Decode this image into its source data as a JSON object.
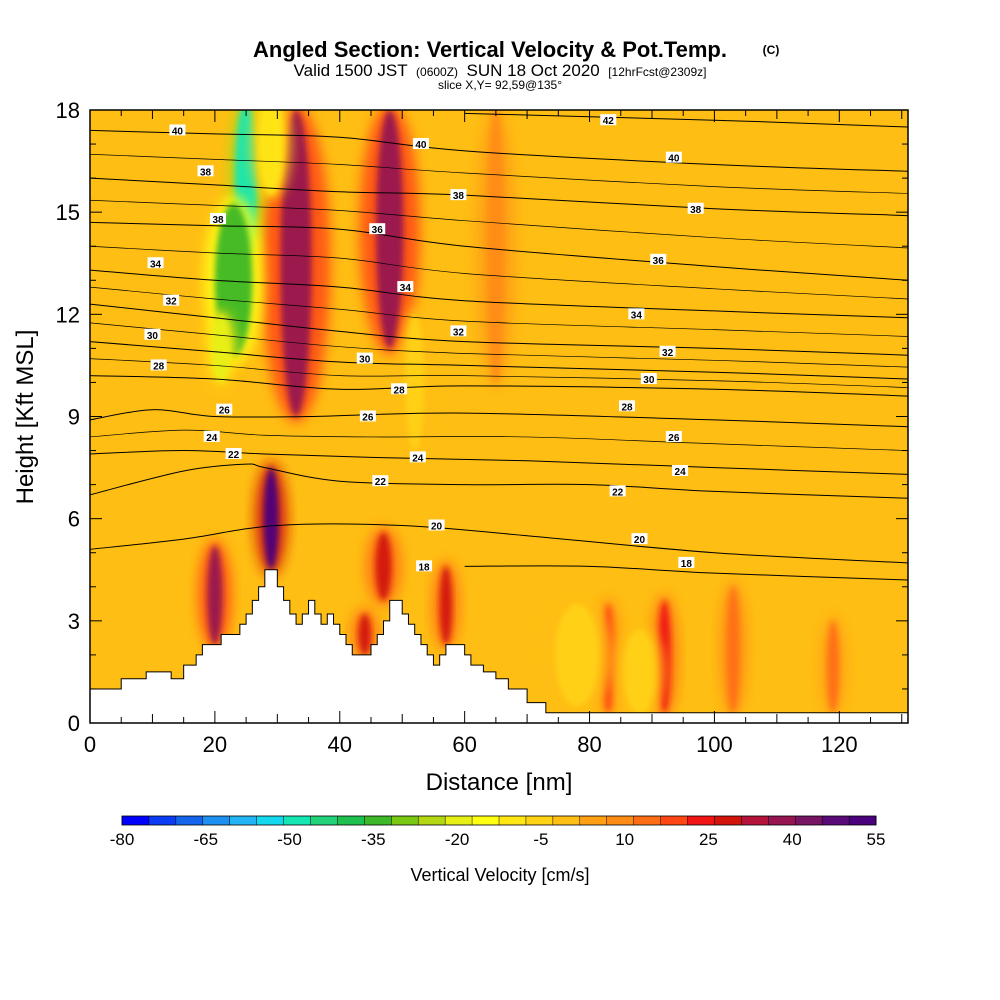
{
  "chart_data": {
    "type": "heatmap",
    "title": {
      "main": "Angled Section: Vertical Velocity & Pot.Temp.",
      "tag": "(C)"
    },
    "subtitle": {
      "valid": "Valid 1500 JST",
      "utc": "(0600Z)",
      "date": "SUN 18 Oct 2020",
      "forecast": "[12hrFcst@2309z]",
      "slice": "slice X,Y= 92,59@135°"
    },
    "xlabel": "Distance [nm]",
    "ylabel": "Height [Kft MSL]",
    "xlim": [
      0,
      131
    ],
    "ylim": [
      0,
      18
    ],
    "x_ticks": [
      "0",
      "20",
      "40",
      "60",
      "80",
      "100",
      "120"
    ],
    "x_tick_values": [
      0,
      20,
      40,
      60,
      80,
      100,
      120
    ],
    "y_ticks": [
      "0",
      "3",
      "6",
      "9",
      "12",
      "15",
      "18"
    ],
    "y_tick_values": [
      0,
      3,
      6,
      9,
      12,
      15,
      18
    ],
    "colorbar": {
      "label": "Vertical Velocity [cm/s]",
      "tick_labels": [
        "-80",
        "-65",
        "-50",
        "-35",
        "-20",
        "-5",
        "10",
        "25",
        "40",
        "55"
      ],
      "colors": [
        "#0000ff",
        "#0a3cf5",
        "#1464ec",
        "#1e90f0",
        "#22b4f5",
        "#14d8ee",
        "#14e6b4",
        "#22d27a",
        "#1ec050",
        "#3cb828",
        "#78c814",
        "#b4d714",
        "#e6f014",
        "#ffff14",
        "#ffe614",
        "#ffd214",
        "#ffbe14",
        "#ffa014",
        "#ff8c14",
        "#ff6e14",
        "#ff4614",
        "#f01414",
        "#d2140a",
        "#b4143c",
        "#961450",
        "#781464",
        "#5a0a78",
        "#4b007d"
      ]
    },
    "terrain": [
      [
        0,
        1
      ],
      [
        5,
        1
      ],
      [
        5,
        1.3
      ],
      [
        9,
        1.3
      ],
      [
        9,
        1.5
      ],
      [
        13,
        1.5
      ],
      [
        13,
        1.3
      ],
      [
        15,
        1.3
      ],
      [
        15,
        1.7
      ],
      [
        17,
        1.7
      ],
      [
        17,
        2.0
      ],
      [
        18,
        2.0
      ],
      [
        18,
        2.3
      ],
      [
        21,
        2.3
      ],
      [
        21,
        2.6
      ],
      [
        24,
        2.6
      ],
      [
        24,
        2.9
      ],
      [
        25,
        2.9
      ],
      [
        25,
        3.2
      ],
      [
        26,
        3.2
      ],
      [
        26,
        3.6
      ],
      [
        27,
        3.6
      ],
      [
        27,
        4.0
      ],
      [
        28,
        4.0
      ],
      [
        28,
        4.5
      ],
      [
        30,
        4.5
      ],
      [
        30,
        4.0
      ],
      [
        31,
        4.0
      ],
      [
        31,
        3.6
      ],
      [
        32,
        3.6
      ],
      [
        32,
        3.2
      ],
      [
        33,
        3.2
      ],
      [
        33,
        2.9
      ],
      [
        34,
        2.9
      ],
      [
        34,
        3.2
      ],
      [
        35,
        3.2
      ],
      [
        35,
        3.6
      ],
      [
        36,
        3.6
      ],
      [
        36,
        3.2
      ],
      [
        37,
        3.2
      ],
      [
        37,
        2.9
      ],
      [
        38,
        2.9
      ],
      [
        38,
        3.2
      ],
      [
        39,
        3.2
      ],
      [
        39,
        2.9
      ],
      [
        40,
        2.9
      ],
      [
        40,
        2.6
      ],
      [
        41,
        2.6
      ],
      [
        41,
        2.3
      ],
      [
        42,
        2.3
      ],
      [
        42,
        2.0
      ],
      [
        45,
        2.0
      ],
      [
        45,
        2.3
      ],
      [
        46,
        2.3
      ],
      [
        46,
        2.6
      ],
      [
        47,
        2.6
      ],
      [
        47,
        3.0
      ],
      [
        48,
        3.0
      ],
      [
        48,
        3.6
      ],
      [
        50,
        3.6
      ],
      [
        50,
        3.2
      ],
      [
        51,
        3.2
      ],
      [
        51,
        2.9
      ],
      [
        52,
        2.9
      ],
      [
        52,
        2.6
      ],
      [
        53,
        2.6
      ],
      [
        53,
        2.3
      ],
      [
        54,
        2.3
      ],
      [
        54,
        2.0
      ],
      [
        55,
        2.0
      ],
      [
        55,
        1.7
      ],
      [
        56,
        1.7
      ],
      [
        56,
        2.0
      ],
      [
        57,
        2.0
      ],
      [
        57,
        2.3
      ],
      [
        60,
        2.3
      ],
      [
        60,
        2.0
      ],
      [
        61,
        2.0
      ],
      [
        61,
        1.7
      ],
      [
        63,
        1.7
      ],
      [
        63,
        1.5
      ],
      [
        65,
        1.5
      ],
      [
        65,
        1.3
      ],
      [
        67,
        1.3
      ],
      [
        67,
        1.0
      ],
      [
        70,
        1.0
      ],
      [
        70,
        0.6
      ],
      [
        73,
        0.6
      ],
      [
        73,
        0.3
      ],
      [
        131,
        0.3
      ]
    ],
    "updrafts": [
      {
        "x": 33,
        "y0": 9,
        "y1": 18,
        "w": 2.5,
        "v": 40
      },
      {
        "x": 48,
        "y0": 11,
        "y1": 18,
        "w": 2.2,
        "v": 40
      },
      {
        "x": 29,
        "y0": 4.5,
        "y1": 7.5,
        "w": 1.2,
        "v": 55
      },
      {
        "x": 20,
        "y0": 2.3,
        "y1": 5.2,
        "w": 1.2,
        "v": 40
      },
      {
        "x": 47,
        "y0": 3.6,
        "y1": 5.6,
        "w": 1.3,
        "v": 30
      },
      {
        "x": 57,
        "y0": 2.3,
        "y1": 4.6,
        "w": 1.0,
        "v": 28
      },
      {
        "x": 44,
        "y0": 2.0,
        "y1": 3.2,
        "w": 1.0,
        "v": 30
      },
      {
        "x": 83,
        "y0": 0.3,
        "y1": 3.5,
        "w": 1.0,
        "v": 22
      },
      {
        "x": 92,
        "y0": 0.3,
        "y1": 3.6,
        "w": 1.0,
        "v": 26
      },
      {
        "x": 65,
        "y0": 10,
        "y1": 18,
        "w": 1.5,
        "v": 12
      },
      {
        "x": 103,
        "y0": 0.3,
        "y1": 4.0,
        "w": 1.0,
        "v": 15
      },
      {
        "x": 119,
        "y0": 0.3,
        "y1": 3.0,
        "w": 1.0,
        "v": 14
      }
    ],
    "downdrafts": [
      {
        "x": 25,
        "y": 16,
        "w": 1.8,
        "h": 4.5,
        "v": -50
      },
      {
        "x": 23,
        "y": 13,
        "w": 3.0,
        "h": 4.5,
        "v": -35
      },
      {
        "x": 21,
        "y": 11,
        "w": 1.5,
        "h": 2,
        "v": -20
      },
      {
        "x": 29,
        "y": 17,
        "w": 2.0,
        "h": 3,
        "v": -8
      },
      {
        "x": 52,
        "y": 10,
        "w": 1.5,
        "h": 4,
        "v": -5
      },
      {
        "x": 78,
        "y": 2.0,
        "w": 3.5,
        "h": 3,
        "v": -5
      },
      {
        "x": 88,
        "y": 1.5,
        "w": 2.5,
        "h": 2.5,
        "v": -5
      }
    ],
    "theta_contours": [
      {
        "label": "18",
        "pts": [
          [
            60,
            4.6
          ],
          [
            80,
            4.6
          ],
          [
            100,
            4.4
          ],
          [
            131,
            4.2
          ]
        ]
      },
      {
        "label": "20",
        "pts": [
          [
            0,
            5.1
          ],
          [
            15,
            5.4
          ],
          [
            30,
            5.8
          ],
          [
            50,
            5.8
          ],
          [
            70,
            5.5
          ],
          [
            100,
            5.0
          ],
          [
            131,
            4.7
          ]
        ]
      },
      {
        "label": "22",
        "pts": [
          [
            0,
            6.7
          ],
          [
            15,
            7.4
          ],
          [
            25,
            7.6
          ],
          [
            28,
            7.5
          ],
          [
            40,
            7.1
          ],
          [
            60,
            7.0
          ],
          [
            80,
            7.0
          ],
          [
            100,
            6.8
          ],
          [
            131,
            6.6
          ]
        ]
      },
      {
        "label": "24",
        "pts": [
          [
            0,
            7.9
          ],
          [
            15,
            8.0
          ],
          [
            28,
            7.9
          ],
          [
            45,
            7.8
          ],
          [
            70,
            7.7
          ],
          [
            100,
            7.5
          ],
          [
            131,
            7.3
          ]
        ]
      },
      {
        "label": "26",
        "pts": [
          [
            0,
            8.9
          ],
          [
            10,
            9.2
          ],
          [
            20,
            9.0
          ],
          [
            35,
            9.0
          ],
          [
            60,
            9.1
          ],
          [
            100,
            8.9
          ],
          [
            131,
            8.7
          ]
        ]
      },
      {
        "label": "28",
        "pts": [
          [
            0,
            10.2
          ],
          [
            20,
            10.1
          ],
          [
            40,
            9.8
          ],
          [
            60,
            9.9
          ],
          [
            100,
            9.8
          ],
          [
            131,
            9.6
          ]
        ]
      },
      {
        "label": "30",
        "pts": [
          [
            0,
            11.2
          ],
          [
            20,
            10.9
          ],
          [
            40,
            10.6
          ],
          [
            60,
            10.5
          ],
          [
            100,
            10.3
          ],
          [
            131,
            10.1
          ]
        ]
      },
      {
        "label": "32",
        "pts": [
          [
            0,
            12.3
          ],
          [
            20,
            11.9
          ],
          [
            40,
            11.5
          ],
          [
            60,
            11.2
          ],
          [
            100,
            11.0
          ],
          [
            131,
            10.8
          ]
        ]
      },
      {
        "label": "34",
        "pts": [
          [
            0,
            13.3
          ],
          [
            20,
            13.0
          ],
          [
            40,
            12.8
          ],
          [
            60,
            12.4
          ],
          [
            100,
            12.1
          ],
          [
            131,
            11.9
          ]
        ]
      },
      {
        "label": "36",
        "pts": [
          [
            0,
            14.7
          ],
          [
            20,
            14.6
          ],
          [
            40,
            14.5
          ],
          [
            60,
            14.0
          ],
          [
            100,
            13.4
          ],
          [
            131,
            13.0
          ]
        ]
      },
      {
        "label": "38",
        "pts": [
          [
            0,
            16.0
          ],
          [
            20,
            15.8
          ],
          [
            40,
            15.6
          ],
          [
            60,
            15.5
          ],
          [
            100,
            15.1
          ],
          [
            131,
            14.9
          ]
        ]
      },
      {
        "label": "40",
        "pts": [
          [
            0,
            17.4
          ],
          [
            20,
            17.3
          ],
          [
            40,
            17.2
          ],
          [
            60,
            16.8
          ],
          [
            100,
            16.4
          ],
          [
            131,
            16.2
          ]
        ]
      },
      {
        "label": "42",
        "pts": [
          [
            60,
            17.9
          ],
          [
            100,
            17.7
          ],
          [
            131,
            17.5
          ]
        ]
      }
    ],
    "contour_labels": [
      {
        "text": "40",
        "x": 14,
        "y": 17.4
      },
      {
        "text": "38",
        "x": 18.5,
        "y": 16.2
      },
      {
        "text": "38",
        "x": 20.5,
        "y": 14.8
      },
      {
        "text": "34",
        "x": 10.5,
        "y": 13.5
      },
      {
        "text": "32",
        "x": 13,
        "y": 12.4
      },
      {
        "text": "30",
        "x": 10,
        "y": 11.4
      },
      {
        "text": "28",
        "x": 11,
        "y": 10.5
      },
      {
        "text": "26",
        "x": 21.5,
        "y": 9.2
      },
      {
        "text": "24",
        "x": 19.5,
        "y": 8.4
      },
      {
        "text": "22",
        "x": 23,
        "y": 7.9
      },
      {
        "text": "40",
        "x": 53,
        "y": 17.0
      },
      {
        "text": "38",
        "x": 59,
        "y": 15.5
      },
      {
        "text": "36",
        "x": 46,
        "y": 14.5
      },
      {
        "text": "34",
        "x": 50.5,
        "y": 12.8
      },
      {
        "text": "32",
        "x": 59,
        "y": 11.5
      },
      {
        "text": "30",
        "x": 44,
        "y": 10.7
      },
      {
        "text": "28",
        "x": 49.5,
        "y": 9.8
      },
      {
        "text": "26",
        "x": 44.5,
        "y": 9.0
      },
      {
        "text": "24",
        "x": 52.5,
        "y": 7.8
      },
      {
        "text": "22",
        "x": 46.5,
        "y": 7.1
      },
      {
        "text": "20",
        "x": 55.5,
        "y": 5.8
      },
      {
        "text": "18",
        "x": 53.5,
        "y": 4.6
      },
      {
        "text": "42",
        "x": 83,
        "y": 17.7
      },
      {
        "text": "40",
        "x": 93.5,
        "y": 16.6
      },
      {
        "text": "38",
        "x": 97,
        "y": 15.1
      },
      {
        "text": "36",
        "x": 91,
        "y": 13.6
      },
      {
        "text": "34",
        "x": 87.5,
        "y": 12.0
      },
      {
        "text": "32",
        "x": 92.5,
        "y": 10.9
      },
      {
        "text": "30",
        "x": 89.5,
        "y": 10.1
      },
      {
        "text": "28",
        "x": 86,
        "y": 9.3
      },
      {
        "text": "26",
        "x": 93.5,
        "y": 8.4
      },
      {
        "text": "24",
        "x": 94.5,
        "y": 7.4
      },
      {
        "text": "22",
        "x": 84.5,
        "y": 6.8
      },
      {
        "text": "20",
        "x": 88,
        "y": 5.4
      },
      {
        "text": "18",
        "x": 95.5,
        "y": 4.7
      }
    ]
  }
}
